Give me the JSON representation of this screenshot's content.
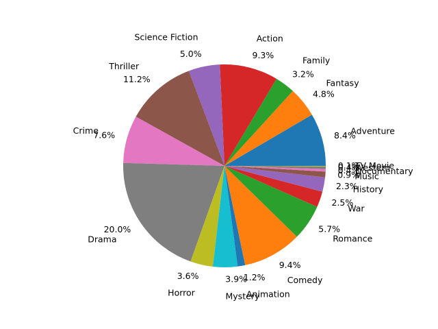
{
  "chart_data": {
    "type": "pie",
    "title": "",
    "start_angle_deg": 0,
    "direction": "counterclockwise",
    "slices": [
      {
        "label": "Adventure",
        "value": 8.4,
        "pct_text": "8.4%",
        "color": "#1f77b4"
      },
      {
        "label": "Fantasy",
        "value": 4.8,
        "pct_text": "4.8%",
        "color": "#ff7f0e"
      },
      {
        "label": "Family",
        "value": 3.2,
        "pct_text": "3.2%",
        "color": "#2ca02c"
      },
      {
        "label": "Action",
        "value": 9.3,
        "pct_text": "9.3%",
        "color": "#d62728"
      },
      {
        "label": "Science Fiction",
        "value": 5.0,
        "pct_text": "5.0%",
        "color": "#9467bd"
      },
      {
        "label": "Thriller",
        "value": 11.2,
        "pct_text": "11.2%",
        "color": "#8c564b"
      },
      {
        "label": "Crime",
        "value": 7.6,
        "pct_text": "7.6%",
        "color": "#e377c2"
      },
      {
        "label": "Drama",
        "value": 20.0,
        "pct_text": "20.0%",
        "color": "#7f7f7f"
      },
      {
        "label": "Horror",
        "value": 3.6,
        "pct_text": "3.6%",
        "color": "#bcbd22"
      },
      {
        "label": "Mystery",
        "value": 3.9,
        "pct_text": "3.9%",
        "color": "#17becf"
      },
      {
        "label": "Animation",
        "value": 1.2,
        "pct_text": "1.2%",
        "color": "#1f77b4"
      },
      {
        "label": "Comedy",
        "value": 9.4,
        "pct_text": "9.4%",
        "color": "#ff7f0e"
      },
      {
        "label": "Romance",
        "value": 5.7,
        "pct_text": "5.7%",
        "color": "#2ca02c"
      },
      {
        "label": "War",
        "value": 2.5,
        "pct_text": "2.5%",
        "color": "#d62728"
      },
      {
        "label": "History",
        "value": 2.3,
        "pct_text": "2.3%",
        "color": "#9467bd"
      },
      {
        "label": "Music",
        "value": 0.9,
        "pct_text": "0.9%",
        "color": "#8c564b"
      },
      {
        "label": "Documentary",
        "value": 0.4,
        "pct_text": "0.4%",
        "color": "#e377c2"
      },
      {
        "label": "Western",
        "value": 0.4,
        "pct_text": "0.4%",
        "color": "#7f7f7f"
      },
      {
        "label": "TV Movie",
        "value": 0.1,
        "pct_text": "0.1%",
        "color": "#bcbd22"
      }
    ]
  }
}
